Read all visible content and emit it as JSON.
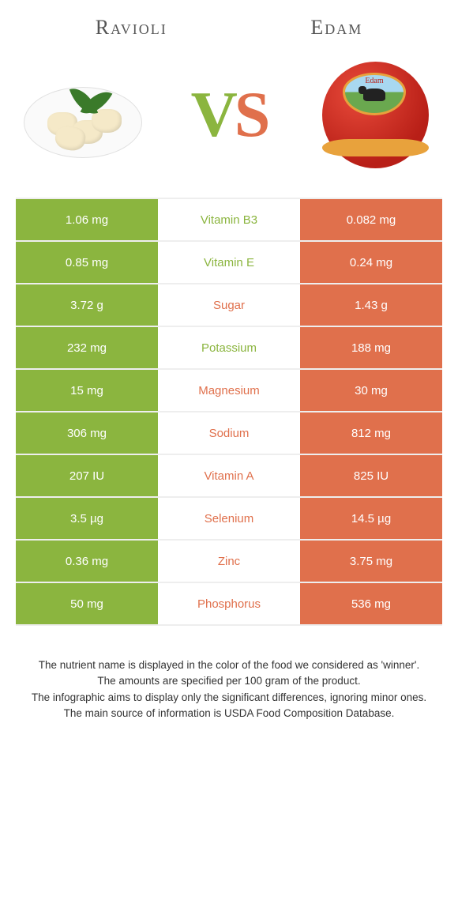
{
  "colors": {
    "left": "#8bb53f",
    "right": "#e0704c",
    "row_border": "#eeeeee",
    "text_dark": "#333333"
  },
  "foods": {
    "left": {
      "name": "Ravioli"
    },
    "right": {
      "name": "Edam",
      "label_brand": "Edam"
    }
  },
  "vs": {
    "v": "V",
    "s": "S"
  },
  "rows": [
    {
      "nutrient": "Vitamin B3",
      "left": "1.06 mg",
      "right": "0.082 mg",
      "winner": "left"
    },
    {
      "nutrient": "Vitamin E",
      "left": "0.85 mg",
      "right": "0.24 mg",
      "winner": "left"
    },
    {
      "nutrient": "Sugar",
      "left": "3.72 g",
      "right": "1.43 g",
      "winner": "right"
    },
    {
      "nutrient": "Potassium",
      "left": "232 mg",
      "right": "188 mg",
      "winner": "left"
    },
    {
      "nutrient": "Magnesium",
      "left": "15 mg",
      "right": "30 mg",
      "winner": "right"
    },
    {
      "nutrient": "Sodium",
      "left": "306 mg",
      "right": "812 mg",
      "winner": "right"
    },
    {
      "nutrient": "Vitamin A",
      "left": "207 IU",
      "right": "825 IU",
      "winner": "right"
    },
    {
      "nutrient": "Selenium",
      "left": "3.5 µg",
      "right": "14.5 µg",
      "winner": "right"
    },
    {
      "nutrient": "Zinc",
      "left": "0.36 mg",
      "right": "3.75 mg",
      "winner": "right"
    },
    {
      "nutrient": "Phosphorus",
      "left": "50 mg",
      "right": "536 mg",
      "winner": "right"
    }
  ],
  "footer": {
    "line1": "The nutrient name is displayed in the color of the food we considered as 'winner'.",
    "line2": "The amounts are specified per 100 gram of the product.",
    "line3": "The infographic aims to display only the significant differences, ignoring minor ones.",
    "line4": "The main source of information is USDA Food Composition Database."
  }
}
